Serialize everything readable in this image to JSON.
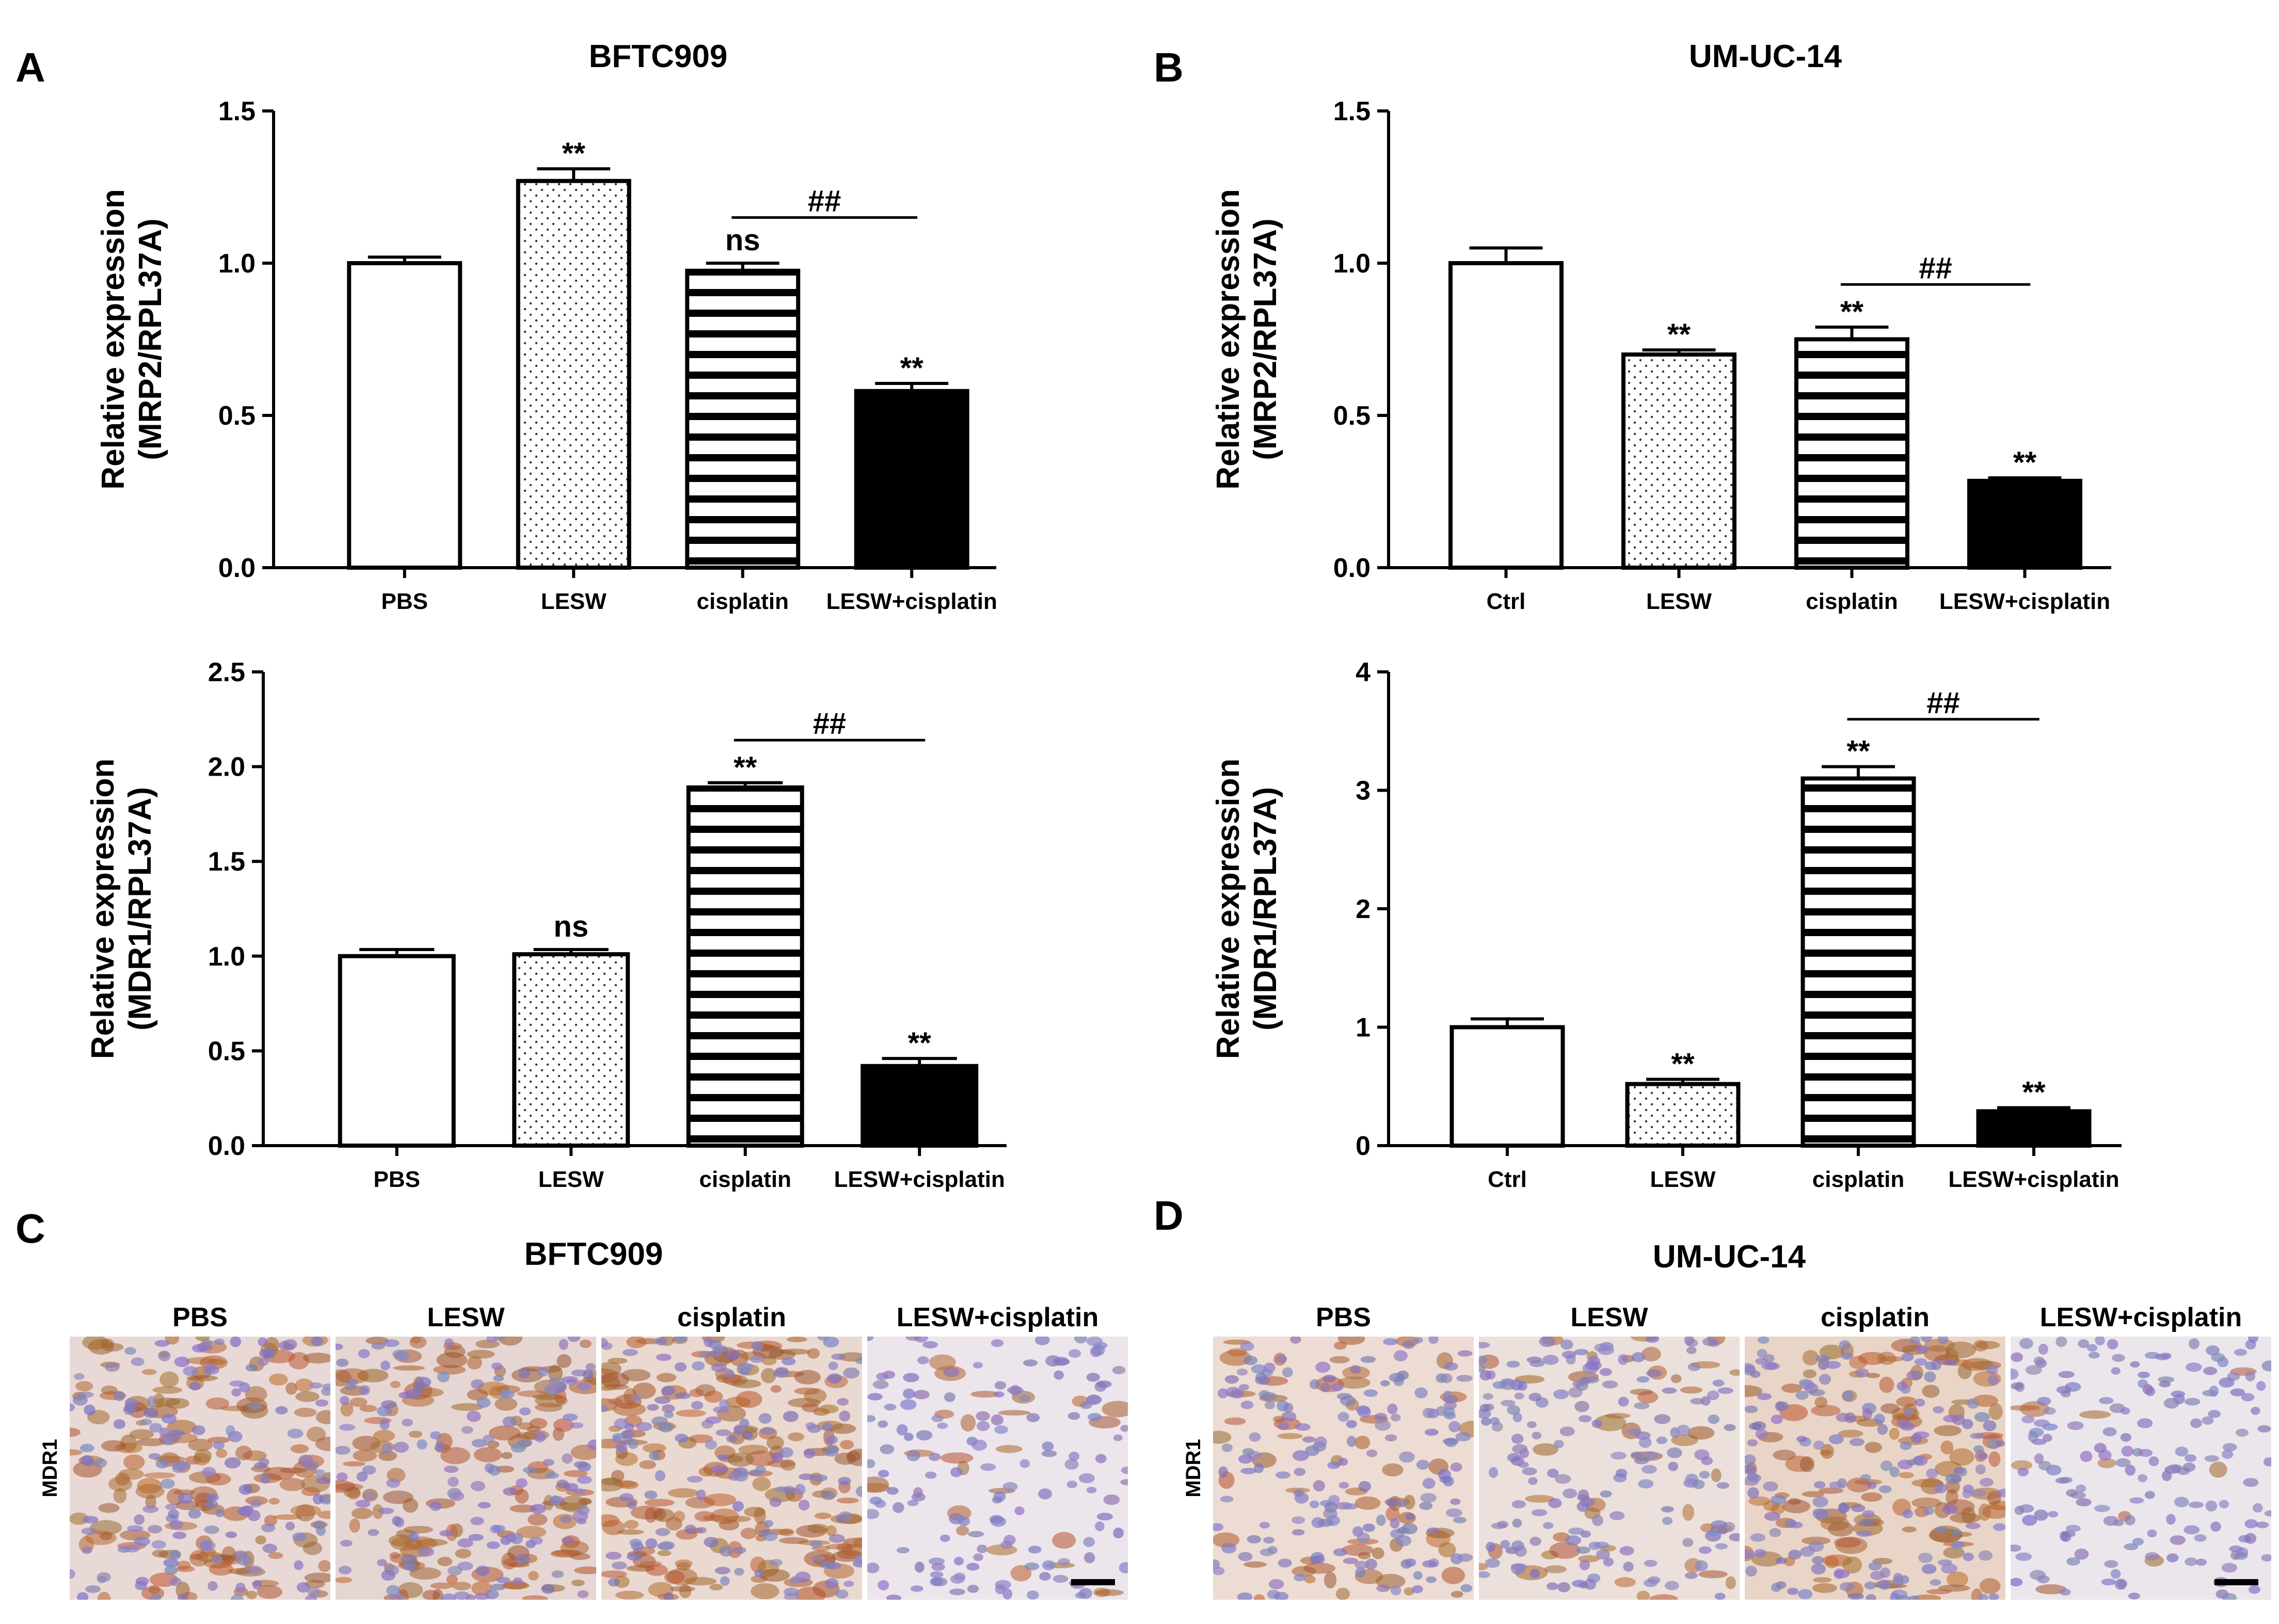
{
  "panels": {
    "A": {
      "letter": "A",
      "cell_line": "BFTC909"
    },
    "B": {
      "letter": "B",
      "cell_line": "UM-UC-14"
    },
    "C": {
      "letter": "C",
      "cell_line": "BFTC909",
      "row_label": "MDR1",
      "columns": [
        "PBS",
        "LESW",
        "cisplatin",
        "LESW+cisplatin"
      ]
    },
    "D": {
      "letter": "D",
      "cell_line": "UM-UC-14",
      "row_label": "MDR1",
      "columns": [
        "PBS",
        "LESW",
        "cisplatin",
        "LESW+cisplatin"
      ]
    }
  },
  "chart_data": [
    {
      "id": "A-MRP2",
      "type": "bar",
      "title": "BFTC909",
      "ylabel_line1": "Relative expression",
      "ylabel_line2": "(MRP2/RPL37A)",
      "categories": [
        "PBS",
        "LESW",
        "cisplatin",
        "LESW+cisplatin"
      ],
      "values": [
        1.0,
        1.27,
        0.975,
        0.58
      ],
      "errors": [
        0.02,
        0.04,
        0.025,
        0.025
      ],
      "patterns": [
        "open",
        "dots",
        "stripes",
        "solid"
      ],
      "significance": [
        "",
        "**",
        "ns",
        "**"
      ],
      "ylim": [
        0,
        1.5
      ],
      "yticks": [
        0.0,
        0.5,
        1.0,
        1.5
      ],
      "ytick_labels": [
        "0.0",
        "0.5",
        "1.0",
        "1.5"
      ],
      "comparison": {
        "from": 2,
        "to": 3,
        "label": "##",
        "y": 1.15
      }
    },
    {
      "id": "A-MDR1",
      "type": "bar",
      "title": "",
      "ylabel_line1": "Relative expression",
      "ylabel_line2": "(MDR1/RPL37A)",
      "categories": [
        "PBS",
        "LESW",
        "cisplatin",
        "LESW+cisplatin"
      ],
      "values": [
        1.0,
        1.01,
        1.89,
        0.42
      ],
      "errors": [
        0.035,
        0.025,
        0.025,
        0.04
      ],
      "patterns": [
        "open",
        "dots",
        "stripes",
        "solid"
      ],
      "significance": [
        "",
        "ns",
        "**",
        "**"
      ],
      "ylim": [
        0,
        2.5
      ],
      "yticks": [
        0.0,
        0.5,
        1.0,
        1.5,
        2.0,
        2.5
      ],
      "ytick_labels": [
        "0.0",
        "0.5",
        "1.0",
        "1.5",
        "2.0",
        "2.5"
      ],
      "comparison": {
        "from": 2,
        "to": 3,
        "label": "##",
        "y": 2.14
      }
    },
    {
      "id": "B-MRP2",
      "type": "bar",
      "title": "UM-UC-14",
      "ylabel_line1": "Relative expression",
      "ylabel_line2": "(MRP2/RPL37A)",
      "categories": [
        "Ctrl",
        "LESW",
        "cisplatin",
        "LESW+cisplatin"
      ],
      "values": [
        1.0,
        0.7,
        0.75,
        0.285
      ],
      "errors": [
        0.05,
        0.015,
        0.04,
        0.01
      ],
      "patterns": [
        "open",
        "dots",
        "stripes",
        "solid"
      ],
      "significance": [
        "",
        "**",
        "**",
        "**"
      ],
      "ylim": [
        0,
        1.5
      ],
      "yticks": [
        0.0,
        0.5,
        1.0,
        1.5
      ],
      "ytick_labels": [
        "0.0",
        "0.5",
        "1.0",
        "1.5"
      ],
      "comparison": {
        "from": 2,
        "to": 3,
        "label": "##",
        "y": 0.93
      }
    },
    {
      "id": "B-MDR1",
      "type": "bar",
      "title": "",
      "ylabel_line1": "Relative expression",
      "ylabel_line2": "(MDR1/RPL37A)",
      "categories": [
        "Ctrl",
        "LESW",
        "cisplatin",
        "LESW+cisplatin"
      ],
      "values": [
        1.0,
        0.52,
        3.1,
        0.29
      ],
      "errors": [
        0.07,
        0.04,
        0.1,
        0.03
      ],
      "patterns": [
        "open",
        "dots",
        "stripes",
        "solid"
      ],
      "significance": [
        "",
        "**",
        "**",
        "**"
      ],
      "ylim": [
        0,
        4
      ],
      "yticks": [
        0,
        1,
        2,
        3,
        4
      ],
      "ytick_labels": [
        "0",
        "1",
        "2",
        "3",
        "4"
      ],
      "comparison": {
        "from": 2,
        "to": 3,
        "label": "##",
        "y": 3.6
      }
    }
  ]
}
